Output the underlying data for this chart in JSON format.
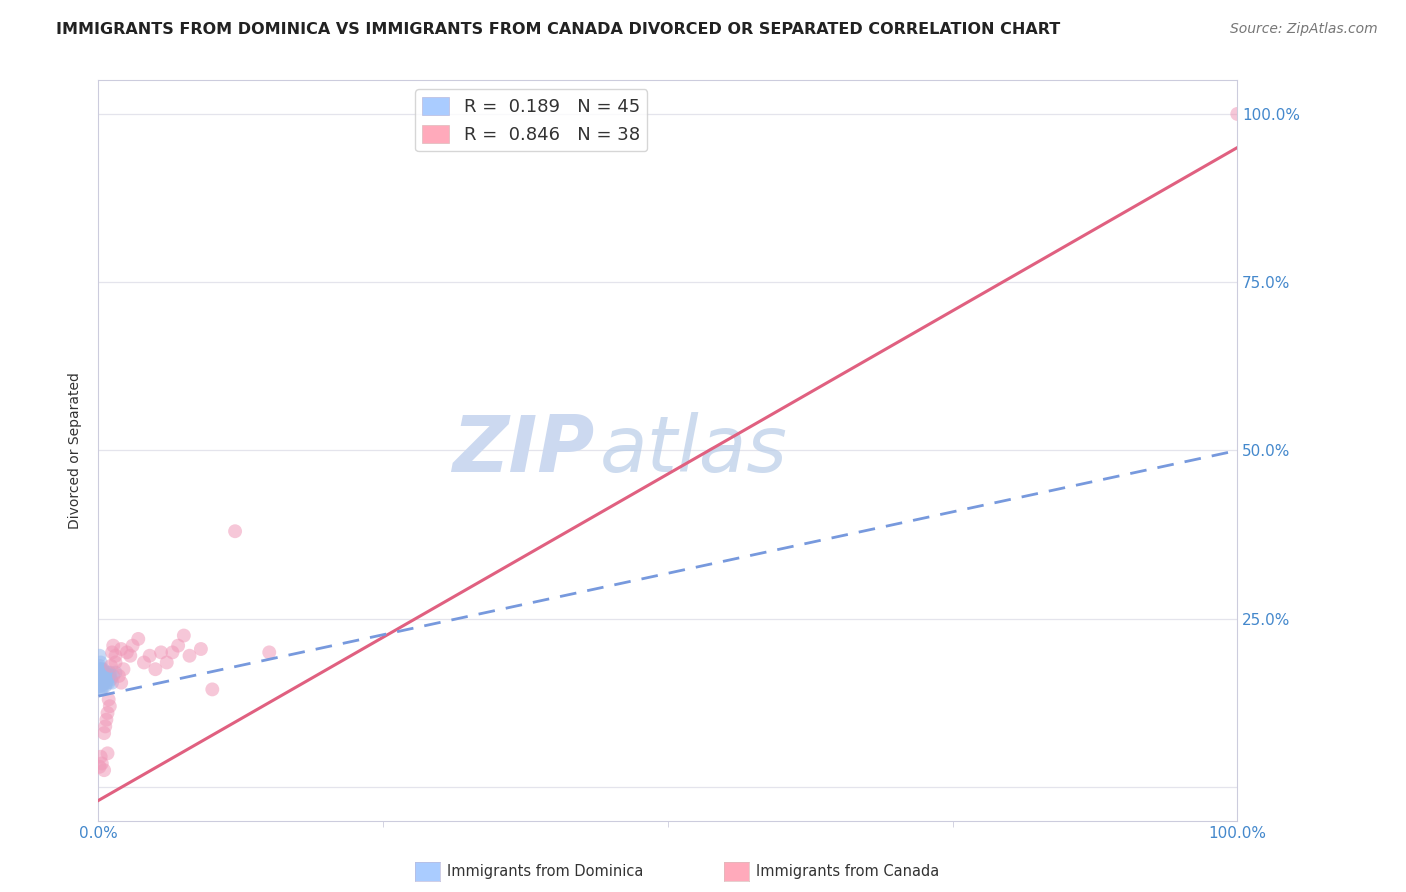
{
  "title": "IMMIGRANTS FROM DOMINICA VS IMMIGRANTS FROM CANADA DIVORCED OR SEPARATED CORRELATION CHART",
  "source": "Source: ZipAtlas.com",
  "ylabel": "Divorced or Separated",
  "xlim": [
    0.0,
    1.0
  ],
  "ylim": [
    -0.05,
    1.05
  ],
  "watermark_zip": "ZIP",
  "watermark_atlas": "atlas",
  "watermark_color": "#ccd9f0",
  "title_fontsize": 11.5,
  "tick_fontsize": 11,
  "source_fontsize": 10,
  "dominica_x": [
    0.0,
    0.001,
    0.001,
    0.001,
    0.001,
    0.001,
    0.001,
    0.001,
    0.002,
    0.002,
    0.002,
    0.002,
    0.002,
    0.002,
    0.002,
    0.002,
    0.003,
    0.003,
    0.003,
    0.003,
    0.003,
    0.003,
    0.003,
    0.003,
    0.004,
    0.004,
    0.004,
    0.004,
    0.005,
    0.005,
    0.005,
    0.006,
    0.006,
    0.006,
    0.007,
    0.007,
    0.008,
    0.008,
    0.009,
    0.01,
    0.01,
    0.011,
    0.012,
    0.013,
    0.015
  ],
  "dominica_y": [
    0.155,
    0.18,
    0.195,
    0.165,
    0.15,
    0.17,
    0.16,
    0.175,
    0.185,
    0.165,
    0.155,
    0.145,
    0.17,
    0.16,
    0.15,
    0.175,
    0.165,
    0.155,
    0.175,
    0.16,
    0.145,
    0.155,
    0.17,
    0.16,
    0.165,
    0.155,
    0.175,
    0.16,
    0.17,
    0.155,
    0.165,
    0.16,
    0.15,
    0.17,
    0.155,
    0.165,
    0.16,
    0.17,
    0.155,
    0.165,
    0.17,
    0.16,
    0.155,
    0.165,
    0.17
  ],
  "dominica_color": "#99bbee",
  "dominica_edge": "#99bbee",
  "dominica_alpha": 0.55,
  "dominica_size": 100,
  "canada_x": [
    0.001,
    0.002,
    0.003,
    0.005,
    0.005,
    0.006,
    0.007,
    0.008,
    0.008,
    0.009,
    0.01,
    0.011,
    0.012,
    0.013,
    0.015,
    0.015,
    0.018,
    0.02,
    0.02,
    0.022,
    0.025,
    0.028,
    0.03,
    0.035,
    0.04,
    0.045,
    0.05,
    0.055,
    0.06,
    0.065,
    0.07,
    0.075,
    0.08,
    0.09,
    0.1,
    0.12,
    0.15,
    1.0
  ],
  "canada_y": [
    0.03,
    0.045,
    0.035,
    0.025,
    0.08,
    0.09,
    0.1,
    0.11,
    0.05,
    0.13,
    0.12,
    0.18,
    0.2,
    0.21,
    0.185,
    0.195,
    0.165,
    0.155,
    0.205,
    0.175,
    0.2,
    0.195,
    0.21,
    0.22,
    0.185,
    0.195,
    0.175,
    0.2,
    0.185,
    0.2,
    0.21,
    0.225,
    0.195,
    0.205,
    0.145,
    0.38,
    0.2,
    1.0
  ],
  "canada_color": "#f099b8",
  "canada_edge": "#f099b8",
  "canada_alpha": 0.55,
  "canada_size": 100,
  "dominica_line_color": "#7799dd",
  "canada_line_color": "#e06080",
  "legend_color1": "#aaccff",
  "legend_color2": "#ffaabb",
  "legend_edge1": "#aaccff",
  "legend_edge2": "#ffaabb",
  "background_color": "#ffffff",
  "grid_color": "#e4e4ec",
  "spine_color": "#ccccdd",
  "ytick_positions": [
    0.0,
    0.25,
    0.5,
    0.75,
    1.0
  ],
  "ytick_labels": [
    "",
    "25.0%",
    "50.0%",
    "75.0%",
    "100.0%"
  ],
  "xtick_positions": [
    0.0,
    1.0
  ],
  "xtick_labels": [
    "0.0%",
    "100.0%"
  ]
}
